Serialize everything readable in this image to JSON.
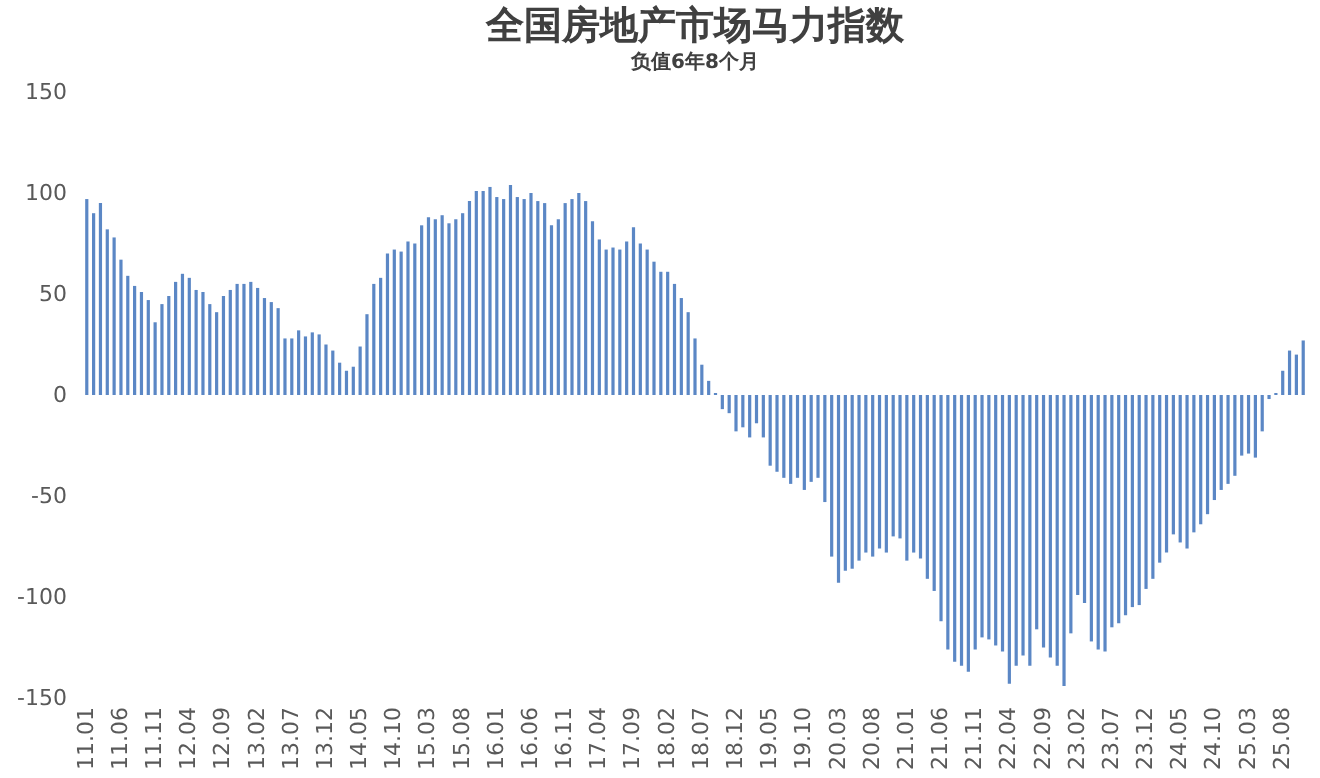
{
  "chart_data": {
    "type": "bar",
    "title": "全国房地产市场马力指数",
    "subtitle": "负值6年8个月",
    "categories": [
      "11.01",
      null,
      null,
      null,
      null,
      "11.06",
      null,
      null,
      null,
      null,
      "11.11",
      null,
      null,
      null,
      null,
      "12.04",
      null,
      null,
      null,
      null,
      "12.09",
      null,
      null,
      null,
      null,
      "13.02",
      null,
      null,
      null,
      null,
      "13.07",
      null,
      null,
      null,
      null,
      "13.12",
      null,
      null,
      null,
      null,
      "14.05",
      null,
      null,
      null,
      null,
      "14.10",
      null,
      null,
      null,
      null,
      "15.03",
      null,
      null,
      null,
      null,
      "15.08",
      null,
      null,
      null,
      null,
      "16.01",
      null,
      null,
      null,
      null,
      "16.06",
      null,
      null,
      null,
      null,
      "16.11",
      null,
      null,
      null,
      null,
      "17.04",
      null,
      null,
      null,
      null,
      "17.09",
      null,
      null,
      null,
      null,
      "18.02",
      null,
      null,
      null,
      null,
      "18.07",
      null,
      null,
      null,
      null,
      "18.12",
      null,
      null,
      null,
      null,
      "19.05",
      null,
      null,
      null,
      null,
      "19.10",
      null,
      null,
      null,
      null,
      "20.03",
      null,
      null,
      null,
      null,
      "20.08",
      null,
      null,
      null,
      null,
      "21.01",
      null,
      null,
      null,
      null,
      "21.06",
      null,
      null,
      null,
      null,
      "21.11",
      null,
      null,
      null,
      null,
      "22.04",
      null,
      null,
      null,
      null,
      "22.09",
      null,
      null,
      null,
      null,
      "23.02",
      null,
      null,
      null,
      null,
      "23.07",
      null,
      null,
      null,
      null,
      "23.12",
      null,
      null,
      null,
      null,
      "24.05",
      null,
      null,
      null,
      null,
      "24.10",
      null,
      null,
      null,
      null,
      "25.03",
      null,
      null,
      null,
      null,
      "25.08",
      null,
      null,
      null
    ],
    "values": [
      97,
      90,
      95,
      82,
      78,
      67,
      59,
      54,
      51,
      47,
      36,
      45,
      49,
      56,
      60,
      58,
      52,
      51,
      45,
      41,
      49,
      52,
      55,
      55,
      56,
      53,
      48,
      46,
      43,
      28,
      28,
      32,
      29,
      31,
      30,
      25,
      22,
      16,
      12,
      14,
      24,
      40,
      55,
      58,
      70,
      72,
      71,
      76,
      75,
      84,
      88,
      87,
      89,
      85,
      87,
      90,
      96,
      101,
      101,
      103,
      98,
      97,
      104,
      98,
      97,
      100,
      96,
      95,
      84,
      87,
      95,
      97,
      100,
      96,
      86,
      77,
      72,
      73,
      72,
      76,
      83,
      75,
      72,
      66,
      61,
      61,
      55,
      48,
      41,
      28,
      15,
      7,
      1,
      -7,
      -9,
      -18,
      -16,
      -21,
      -14,
      -21,
      -35,
      -38,
      -41,
      -44,
      -41,
      -47,
      -43,
      -41,
      -53,
      -80,
      -93,
      -87,
      -86,
      -82,
      -78,
      -80,
      -76,
      -78,
      -70,
      -71,
      -82,
      -78,
      -81,
      -91,
      -97,
      -112,
      -126,
      -132,
      -134,
      -137,
      -126,
      -120,
      -121,
      -124,
      -127,
      -143,
      -134,
      -129,
      -134,
      -116,
      -125,
      -130,
      -134,
      -144,
      -118,
      -99,
      -103,
      -122,
      -126,
      -127,
      -115,
      -113,
      -109,
      -105,
      -104,
      -96,
      -91,
      -83,
      -78,
      -69,
      -73,
      -76,
      -68,
      -64,
      -59,
      -52,
      -47,
      -44,
      -40,
      -30,
      -29,
      -31,
      -18,
      -2,
      1,
      12,
      22,
      20,
      27
    ],
    "color": "#5b87c5",
    "ylim": [
      -150,
      150
    ],
    "yticks": [
      -150,
      -100,
      -50,
      0,
      50,
      100,
      150
    ]
  }
}
